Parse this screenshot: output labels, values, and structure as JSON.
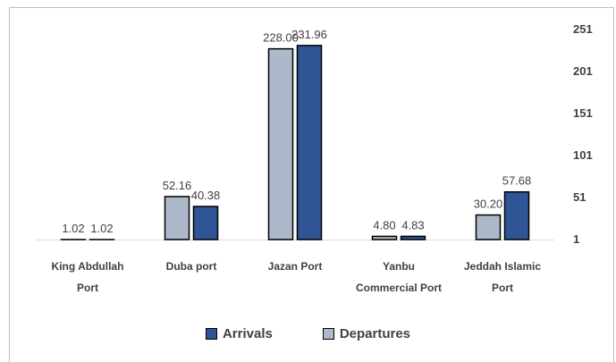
{
  "chart_data": {
    "type": "bar",
    "title": "",
    "categories": [
      [
        "King Abdullah",
        "Port"
      ],
      [
        "Duba port"
      ],
      [
        "Jazan Port"
      ],
      [
        "Yanbu",
        "Commercial Port"
      ],
      [
        "Jeddah Islamic",
        "Port"
      ]
    ],
    "series": [
      {
        "name": "Departures",
        "color": "#adb9ca",
        "values": [
          1.02,
          52.16,
          228.0,
          4.8,
          30.2
        ],
        "labels": [
          "1.02",
          "52.16",
          "228.00",
          "4.80",
          "30.20"
        ]
      },
      {
        "name": "Arrivals",
        "color": "#2f5597",
        "values": [
          1.02,
          40.38,
          231.96,
          4.83,
          57.68
        ],
        "labels": [
          "1.02",
          "40.38",
          "231.96",
          "4.83",
          "57.68"
        ]
      }
    ],
    "yticks": [
      "1",
      "51",
      "101",
      "151",
      "201",
      "251"
    ],
    "ylim": [
      1,
      251
    ],
    "y_axis_side": "right",
    "grid": false,
    "legend_position": "bottom",
    "legend": [
      "Arrivals",
      "Departures"
    ]
  }
}
